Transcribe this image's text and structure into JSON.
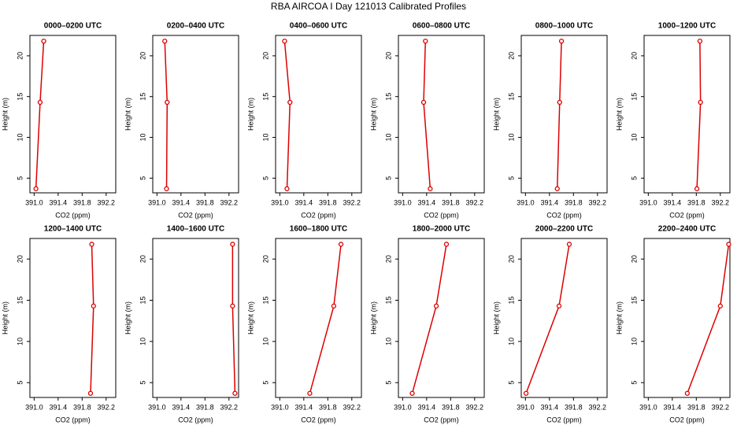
{
  "title": "RBA AIRCOA I  Day 121013  Calibrated Profiles",
  "chart_data": [
    {
      "type": "line",
      "title": "0000–0200 UTC",
      "x_label": "CO2 (ppm)",
      "y_label": "Height (m)",
      "x": [
        391.03,
        391.1,
        391.16
      ],
      "values": [
        3.7,
        14.3,
        21.8
      ],
      "color": "#dd0000",
      "xlim": [
        390.93,
        392.36
      ],
      "ylim": [
        3.2,
        22.5
      ],
      "xticks": [
        {
          "value": 391,
          "label": "391.0"
        },
        391.4,
        391.8,
        392.2
      ],
      "yticks": [
        5,
        10,
        15,
        20
      ]
    },
    {
      "type": "line",
      "title": "0200–0400 UTC",
      "x_label": "CO2 (ppm)",
      "y_label": "Height (m)",
      "x": [
        391.16,
        391.17,
        391.13
      ],
      "values": [
        3.7,
        14.3,
        21.8
      ],
      "color": "#dd0000",
      "xlim": [
        390.93,
        392.36
      ],
      "ylim": [
        3.2,
        22.5
      ],
      "xticks": [
        {
          "value": 391,
          "label": "391.0"
        },
        391.4,
        391.8,
        392.2
      ],
      "yticks": [
        5,
        10,
        15,
        20
      ]
    },
    {
      "type": "line",
      "title": "0400–0600 UTC",
      "x_label": "CO2 (ppm)",
      "y_label": "Height (m)",
      "x": [
        391.12,
        391.17,
        391.08
      ],
      "values": [
        3.7,
        14.3,
        21.8
      ],
      "color": "#dd0000",
      "xlim": [
        390.93,
        392.36
      ],
      "ylim": [
        3.2,
        22.5
      ],
      "xticks": [
        {
          "value": 391,
          "label": "391.0"
        },
        391.4,
        391.8,
        392.2
      ],
      "yticks": [
        5,
        10,
        15,
        20
      ]
    },
    {
      "type": "line",
      "title": "0600–0800 UTC",
      "x_label": "CO2 (ppm)",
      "y_label": "Height (m)",
      "x": [
        391.46,
        391.35,
        391.38
      ],
      "values": [
        3.7,
        14.3,
        21.8
      ],
      "color": "#dd0000",
      "xlim": [
        390.93,
        392.36
      ],
      "ylim": [
        3.2,
        22.5
      ],
      "xticks": [
        {
          "value": 391,
          "label": "391.0"
        },
        391.4,
        391.8,
        392.2
      ],
      "yticks": [
        5,
        10,
        15,
        20
      ]
    },
    {
      "type": "line",
      "title": "0800–1000 UTC",
      "x_label": "CO2 (ppm)",
      "y_label": "Height (m)",
      "x": [
        391.53,
        391.57,
        391.6
      ],
      "values": [
        3.7,
        14.3,
        21.8
      ],
      "color": "#dd0000",
      "xlim": [
        390.93,
        392.36
      ],
      "ylim": [
        3.2,
        22.5
      ],
      "xticks": [
        {
          "value": 391,
          "label": "391.0"
        },
        391.4,
        391.8,
        392.2
      ],
      "yticks": [
        5,
        10,
        15,
        20
      ]
    },
    {
      "type": "line",
      "title": "1000–1200 UTC",
      "x_label": "CO2 (ppm)",
      "y_label": "Height (m)",
      "x": [
        391.81,
        391.87,
        391.86
      ],
      "values": [
        3.7,
        14.3,
        21.8
      ],
      "color": "#dd0000",
      "xlim": [
        390.93,
        392.36
      ],
      "ylim": [
        3.2,
        22.5
      ],
      "xticks": [
        {
          "value": 391,
          "label": "391.0"
        },
        391.4,
        391.8,
        392.2
      ],
      "yticks": [
        5,
        10,
        15,
        20
      ]
    },
    {
      "type": "line",
      "title": "1200–1400 UTC",
      "x_label": "CO2 (ppm)",
      "y_label": "Height (m)",
      "x": [
        391.94,
        391.99,
        391.96
      ],
      "values": [
        3.7,
        14.3,
        21.8
      ],
      "color": "#dd0000",
      "xlim": [
        390.93,
        392.36
      ],
      "ylim": [
        3.2,
        22.5
      ],
      "xticks": [
        {
          "value": 391,
          "label": "391.0"
        },
        391.4,
        391.8,
        392.2
      ],
      "yticks": [
        5,
        10,
        15,
        20
      ]
    },
    {
      "type": "line",
      "title": "1400–1600 UTC",
      "x_label": "CO2 (ppm)",
      "y_label": "Height (m)",
      "x": [
        392.3,
        392.26,
        392.26
      ],
      "values": [
        3.7,
        14.3,
        21.8
      ],
      "color": "#dd0000",
      "xlim": [
        390.93,
        392.36
      ],
      "ylim": [
        3.2,
        22.5
      ],
      "xticks": [
        {
          "value": 391,
          "label": "391.0"
        },
        391.4,
        391.8,
        392.2
      ],
      "yticks": [
        5,
        10,
        15,
        20
      ]
    },
    {
      "type": "line",
      "title": "1600–1800 UTC",
      "x_label": "CO2 (ppm)",
      "y_label": "Height (m)",
      "x": [
        391.5,
        391.9,
        392.02
      ],
      "values": [
        3.7,
        14.3,
        21.8
      ],
      "color": "#dd0000",
      "xlim": [
        390.93,
        392.36
      ],
      "ylim": [
        3.2,
        22.5
      ],
      "xticks": [
        {
          "value": 391,
          "label": "391.0"
        },
        391.4,
        391.8,
        392.2
      ],
      "yticks": [
        5,
        10,
        15,
        20
      ]
    },
    {
      "type": "line",
      "title": "1800–2000 UTC",
      "x_label": "CO2 (ppm)",
      "y_label": "Height (m)",
      "x": [
        391.16,
        391.56,
        391.73
      ],
      "values": [
        3.7,
        14.3,
        21.8
      ],
      "color": "#dd0000",
      "xlim": [
        390.93,
        392.36
      ],
      "ylim": [
        3.2,
        22.5
      ],
      "xticks": [
        {
          "value": 391,
          "label": "391.0"
        },
        391.4,
        391.8,
        392.2
      ],
      "yticks": [
        5,
        10,
        15,
        20
      ]
    },
    {
      "type": "line",
      "title": "2000–2200 UTC",
      "x_label": "CO2 (ppm)",
      "y_label": "Height (m)",
      "x": [
        391.01,
        391.56,
        391.73
      ],
      "values": [
        3.7,
        14.3,
        21.8
      ],
      "color": "#dd0000",
      "xlim": [
        390.93,
        392.36
      ],
      "ylim": [
        3.2,
        22.5
      ],
      "xticks": [
        {
          "value": 391,
          "label": "391.0"
        },
        391.4,
        391.8,
        392.2
      ],
      "yticks": [
        5,
        10,
        15,
        20
      ]
    },
    {
      "type": "line",
      "title": "2200–2400 UTC",
      "x_label": "CO2 (ppm)",
      "y_label": "Height (m)",
      "x": [
        391.65,
        392.2,
        392.34
      ],
      "values": [
        3.7,
        14.3,
        21.8
      ],
      "color": "#dd0000",
      "xlim": [
        390.93,
        392.36
      ],
      "ylim": [
        3.2,
        22.5
      ],
      "xticks": [
        {
          "value": 391,
          "label": "391.0"
        },
        391.4,
        391.8,
        392.2
      ],
      "yticks": [
        5,
        10,
        15,
        20
      ]
    }
  ]
}
